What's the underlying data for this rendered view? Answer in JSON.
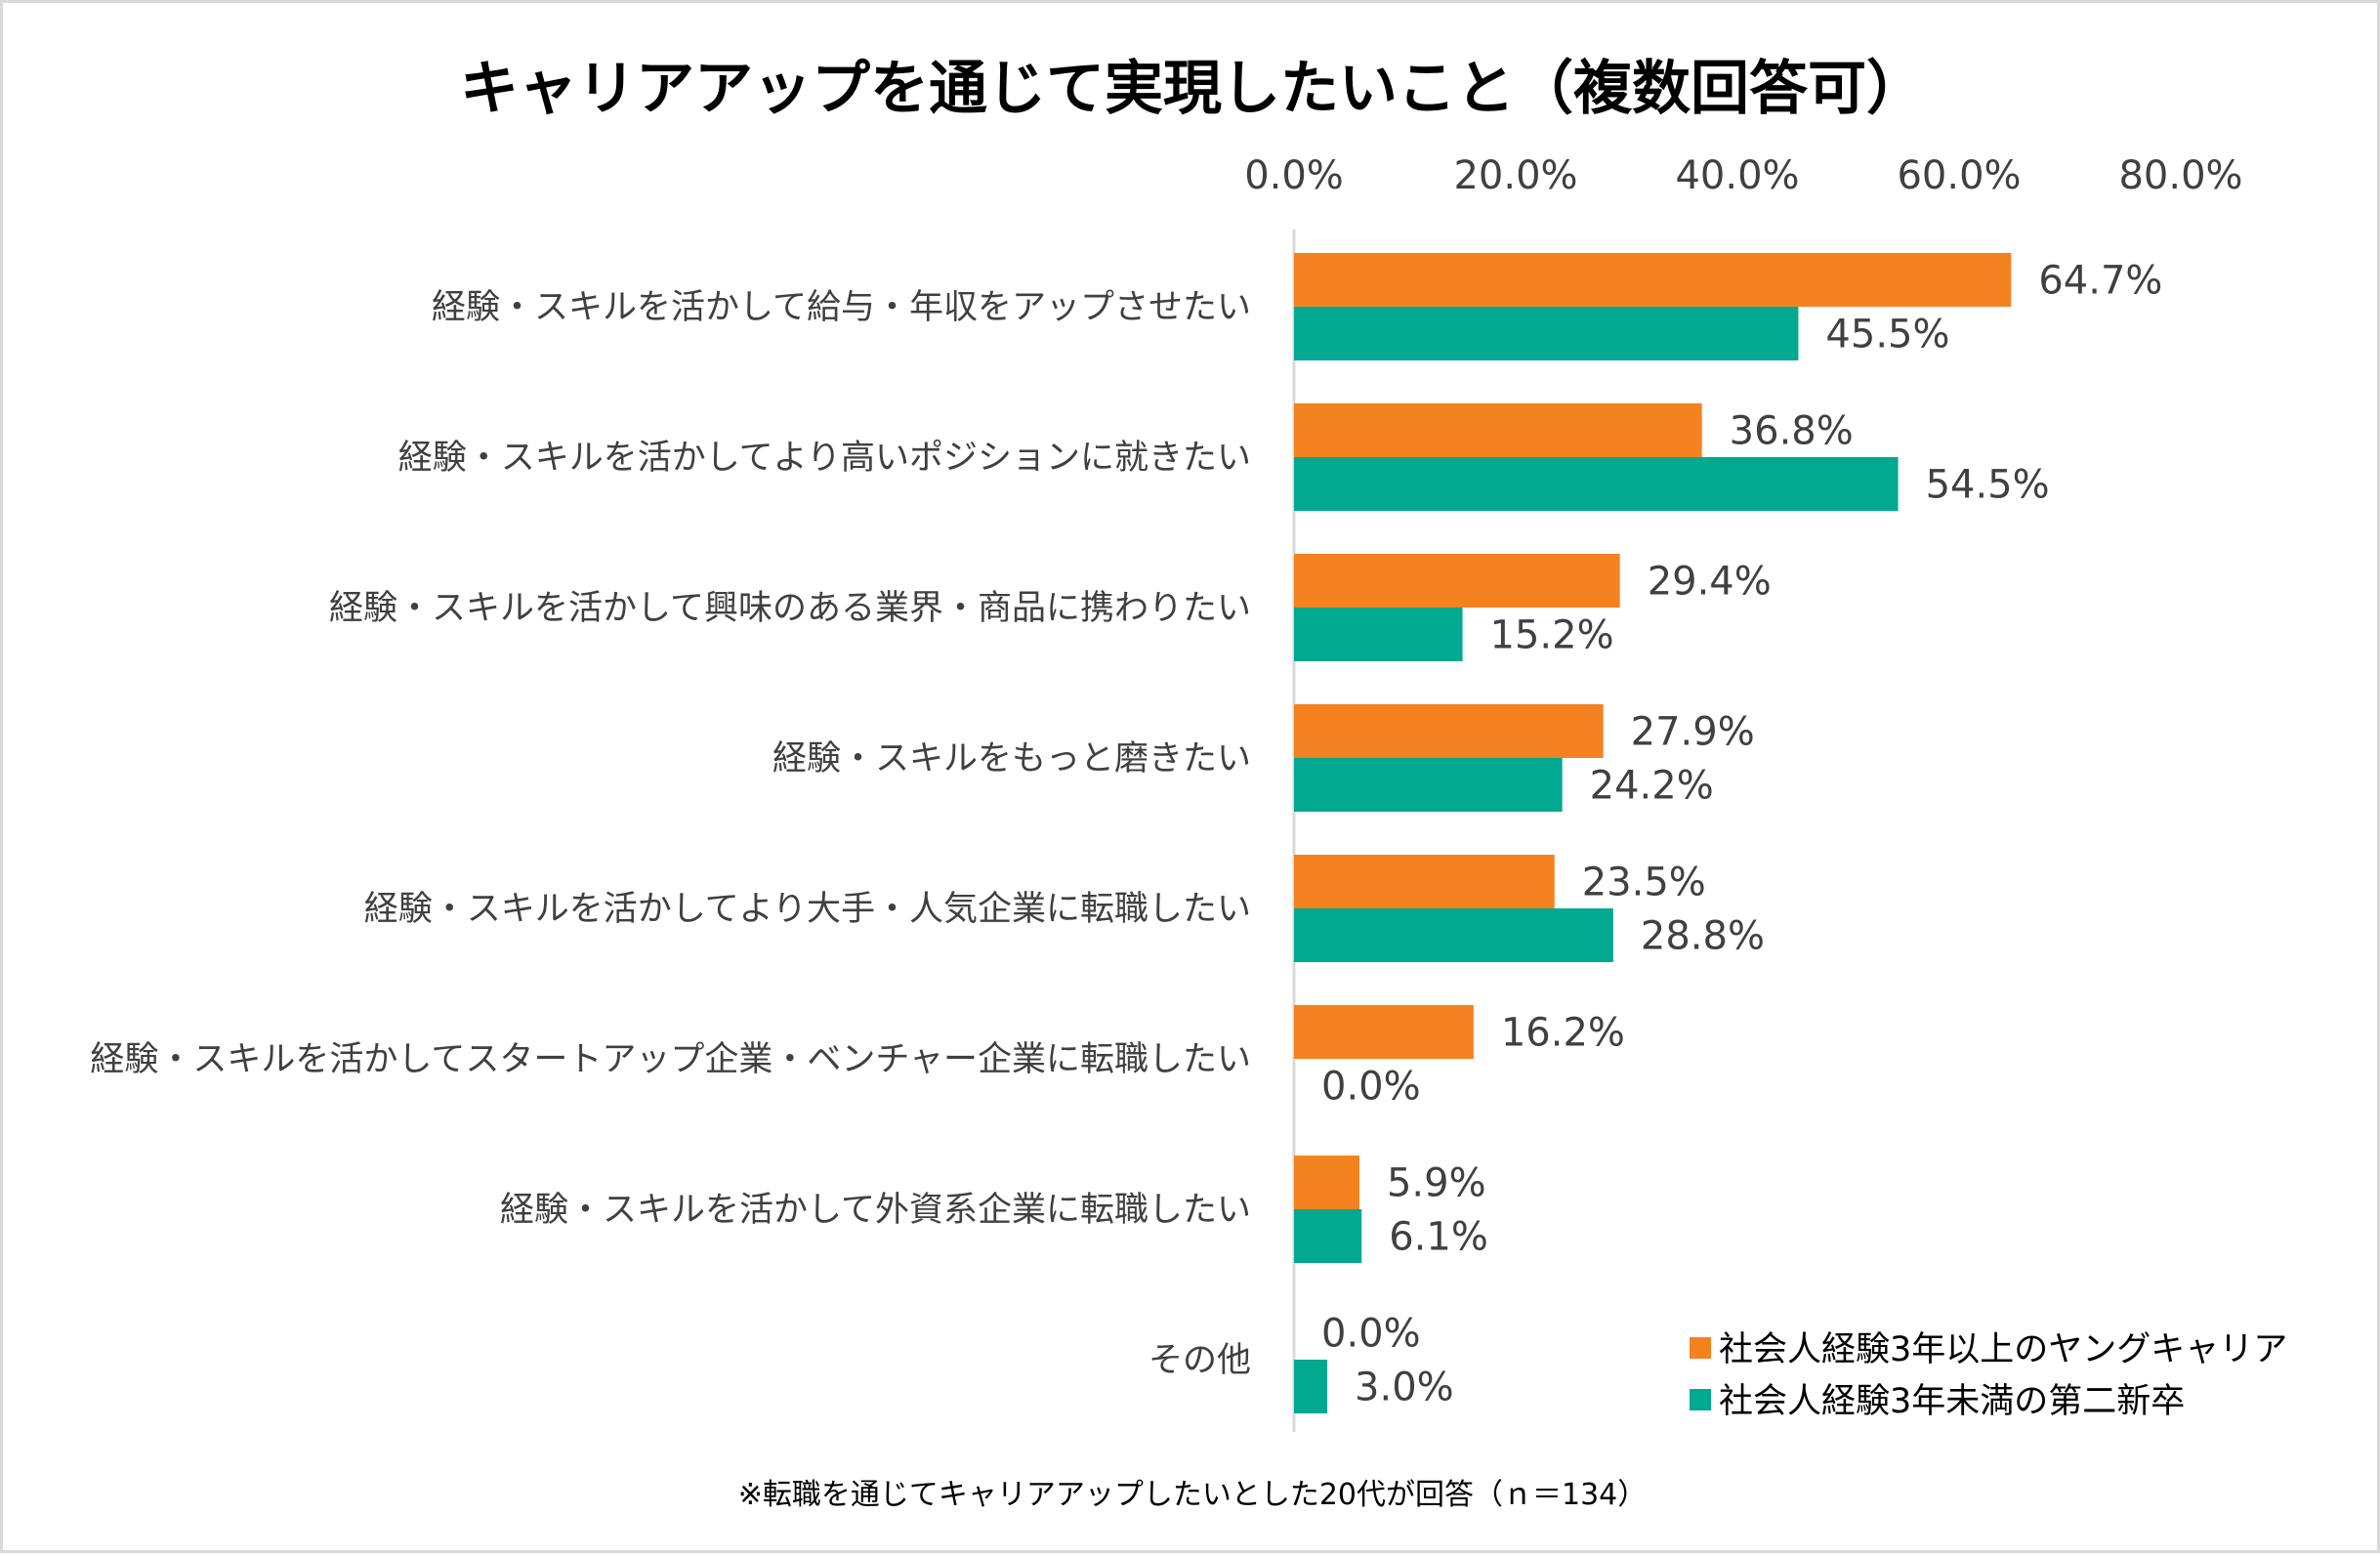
{
  "chart_data": {
    "type": "bar",
    "orientation": "horizontal",
    "title": "キャリアアップを通じて実現したいこと（複数回答可）",
    "xlim": [
      0,
      80
    ],
    "ticks": [
      "0.0%",
      "20.0%",
      "40.0%",
      "60.0%",
      "80.0%"
    ],
    "tick_values": [
      0,
      20,
      40,
      60,
      80
    ],
    "categories": [
      "経験・スキルを活かして給与・年収をアップさせたい",
      "経験・スキルを活かしてより高いポジションに就きたい",
      "経験・スキルを活かして興味のある業界・商品に携わりたい",
      "経験・スキルをもっと磨きたい",
      "経験・スキルを活かしてより大手・人気企業に転職したい",
      "経験・スキルを活かしてスタートアップ企業・ベンチャー企業に転職したい",
      "経験・スキルを活かして外資系企業に転職したい",
      "その他"
    ],
    "series": [
      {
        "name": "社会人経験3年以上のヤングキャリア",
        "color": "#f58220",
        "values": [
          64.7,
          36.8,
          29.4,
          27.9,
          23.5,
          16.2,
          5.9,
          0.0
        ],
        "labels": [
          "64.7%",
          "36.8%",
          "29.4%",
          "27.9%",
          "23.5%",
          "16.2%",
          "5.9%",
          "0.0%"
        ]
      },
      {
        "name": "社会人経験3年未満の第二新卒",
        "color": "#00a98f",
        "values": [
          45.5,
          54.5,
          15.2,
          24.2,
          28.8,
          0.0,
          6.1,
          3.0
        ],
        "labels": [
          "45.5%",
          "54.5%",
          "15.2%",
          "24.2%",
          "28.8%",
          "0.0%",
          "6.1%",
          "3.0%"
        ]
      }
    ],
    "grid": false,
    "axis_position": "top",
    "legend_position": "bottom-right"
  },
  "footnote": "※転職を通じてキャリアアップしたいとした20代が回答（ｎ＝134）"
}
